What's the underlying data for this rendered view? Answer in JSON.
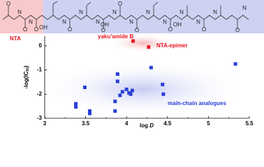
{
  "structure": {
    "nta_label": "NTA",
    "atom_labels": [
      "O",
      "O",
      "O",
      "O",
      "O",
      "O",
      "O",
      "O",
      "O",
      "O",
      "OH",
      "OH",
      "OH",
      "N",
      "N",
      "N",
      "N",
      "N",
      "N",
      "N",
      "N",
      "N",
      "N",
      "N",
      "N",
      "N"
    ]
  },
  "chart_data": {
    "type": "scatter",
    "x_label": {
      "main": "log ",
      "italic": "D"
    },
    "y_label": {
      "main": "-log(IC",
      "sub": "50",
      "end": ")"
    },
    "xlim": [
      3.0,
      5.5
    ],
    "xticks": [
      3.0,
      3.5,
      4.0,
      4.5,
      5.0,
      5.5
    ],
    "ylim": [
      -3,
      0.4
    ],
    "yticks": [
      0,
      -1,
      -2,
      -3
    ],
    "series": [
      {
        "color": "#e8141e",
        "x": [
          4.08,
          4.27
        ],
        "values": [
          0.2,
          -0.05
        ]
      },
      {
        "color": "#2a3fd6",
        "x": [
          4.44,
          4.3,
          3.89,
          3.89,
          3.49,
          3.38,
          3.38,
          3.55,
          3.55,
          3.95,
          4.03,
          4.07,
          4.0,
          4.05,
          3.86,
          3.86,
          4.45,
          5.33,
          3.92
        ],
        "values": [
          -1.6,
          -0.9,
          -1.17,
          -1.47,
          -1.72,
          -2.4,
          -2.53,
          -2.7,
          -2.8,
          -1.9,
          -1.95,
          -1.85,
          -1.8,
          -2.0,
          -2.3,
          -2.7,
          -2.0,
          -0.75,
          -2.05
        ]
      }
    ],
    "annotations": [
      "yaku'amide B",
      "NTA-epimer",
      "main-chain analogues"
    ]
  }
}
